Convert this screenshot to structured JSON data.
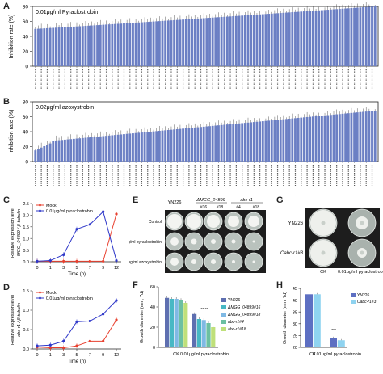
{
  "panels": {
    "A": {
      "label": "A",
      "conc": "0.01μg/ml Pyraclostrobin",
      "ylabel": "Inhibition rate (%)",
      "ticks": [
        "0",
        "20",
        "40",
        "60",
        "80"
      ]
    },
    "B": {
      "label": "B",
      "conc": "0.02μg/ml azoxystrobin",
      "ylabel": "Inhibition rate (%)",
      "ticks": [
        "0",
        "20",
        "40",
        "60",
        "80"
      ]
    },
    "C": {
      "label": "C",
      "ylabel1": "Relative expression level",
      "ylabel2": "MGG_04899 / β-tubulin",
      "xlabel": "Time (h)",
      "legend": [
        "Mock",
        "0.01μg/ml pyraclostrobin"
      ],
      "yticks": [
        "0.0",
        "0.5",
        "1.0",
        "1.5",
        "2.0",
        "2.5"
      ],
      "xticks": [
        "0",
        "1",
        "3",
        "5",
        "7",
        "9",
        "12"
      ]
    },
    "D": {
      "label": "D",
      "ylabel1": "Relative expression level",
      "ylabel2": "abc-r1 / β-tubulin",
      "xlabel": "Time (h)",
      "legend": [
        "Mock",
        "0.01μg/ml pyraclostrobin"
      ],
      "yticks": [
        "0.0",
        "0.5",
        "1.0",
        "1.5"
      ],
      "xticks": [
        "0",
        "1",
        "3",
        "5",
        "7",
        "9",
        "12"
      ]
    },
    "E": {
      "label": "E",
      "col_groups": [
        "YN226",
        "ΔMGG_04899",
        "abc-r1"
      ],
      "cols": [
        "#16",
        "#18",
        "#4",
        "#18"
      ],
      "rows": [
        "Control",
        "0.01μg/ml pyraclostrobin",
        "0.02μg/ml azoxystrobin"
      ]
    },
    "F": {
      "label": "F",
      "ylabel": "Growth diameter (mm, 7d)",
      "yticks": [
        "0",
        "20",
        "40",
        "60"
      ],
      "groups": [
        "CK",
        "0.01μg/ml pyraclostrobin"
      ],
      "sig": "** **",
      "legend": [
        "YN226",
        "ΔMGG_04899#16",
        "ΔMGG_04899#18",
        "abc-r1#4",
        "abc-r1#18"
      ]
    },
    "G": {
      "label": "G",
      "rows": [
        "YN226",
        "Cabc-r1#3"
      ],
      "cols": [
        "CK",
        "0.01μg/ml pyraclostrobin"
      ]
    },
    "H": {
      "label": "H",
      "ylabel": "Growth diameter (mm, 7d)",
      "yticks": [
        "20",
        "25",
        "30",
        "35",
        "40",
        "45"
      ],
      "groups": [
        "CK",
        "0.01μg/ml pyraclostrobin"
      ],
      "sig": "***",
      "legend": [
        "YN226",
        "Cabc-r1#3"
      ]
    }
  },
  "colors": {
    "bar": "#6b7fc4",
    "red": "#e8402f",
    "blue": "#2f38c9",
    "f1": "#5e6fb0",
    "f2": "#47b8c4",
    "f3": "#7fb9e4",
    "f4": "#6cc0a2",
    "f5": "#bfe07a",
    "h1": "#5d6fc2",
    "h2": "#8fd3f0"
  },
  "chart_data": [
    {
      "type": "bar",
      "title": "0.01μg/ml Pyraclostrobin",
      "ylabel": "Inhibition rate (%)",
      "ylim": [
        0,
        80
      ],
      "n_bars": 116,
      "values_range": [
        50,
        80
      ]
    },
    {
      "type": "bar",
      "title": "0.02μg/ml azoxystrobin",
      "ylabel": "Inhibition rate (%)",
      "ylim": [
        0,
        80
      ],
      "n_bars": 116,
      "values_range": [
        15,
        68
      ]
    },
    {
      "type": "line",
      "x": [
        "0",
        "1",
        "3",
        "5",
        "7",
        "9",
        "12"
      ],
      "series": [
        {
          "name": "Mock",
          "values": [
            0.02,
            0.02,
            0.02,
            0.02,
            0.02,
            0.02,
            2.05
          ]
        },
        {
          "name": "0.01μg/ml pyraclostrobin",
          "values": [
            0.02,
            0.05,
            0.3,
            1.4,
            1.6,
            2.15,
            0.05
          ]
        }
      ]
    },
    {
      "type": "line",
      "x": [
        "0",
        "1",
        "3",
        "5",
        "7",
        "9",
        "12"
      ],
      "series": [
        {
          "name": "Mock",
          "values": [
            0.05,
            0.03,
            0.03,
            0.08,
            0.2,
            0.2,
            0.75
          ]
        },
        {
          "name": "0.01μg/ml pyraclostrobin",
          "values": [
            0.08,
            0.1,
            0.2,
            0.7,
            0.72,
            0.9,
            1.25
          ]
        }
      ]
    },
    {
      "type": "bar",
      "categories": [
        "CK",
        "0.01μg/ml pyraclostrobin"
      ],
      "ylim": [
        0,
        60
      ],
      "series": [
        {
          "name": "YN226",
          "values": [
            49,
            33
          ]
        },
        {
          "name": "ΔMGG_04899#16",
          "values": [
            48,
            28
          ]
        },
        {
          "name": "ΔMGG_04899#18",
          "values": [
            48,
            27
          ]
        },
        {
          "name": "abc-r1#4",
          "values": [
            47,
            24
          ]
        },
        {
          "name": "abc-r1#18",
          "values": [
            44,
            20
          ]
        }
      ]
    },
    {
      "type": "bar",
      "categories": [
        "CK",
        "0.01μg/ml pyraclostrobin"
      ],
      "ylim": [
        20,
        45
      ],
      "series": [
        {
          "name": "YN226",
          "values": [
            42.5,
            24
          ]
        },
        {
          "name": "Cabc-r1#3",
          "values": [
            42.5,
            23
          ]
        }
      ]
    }
  ]
}
